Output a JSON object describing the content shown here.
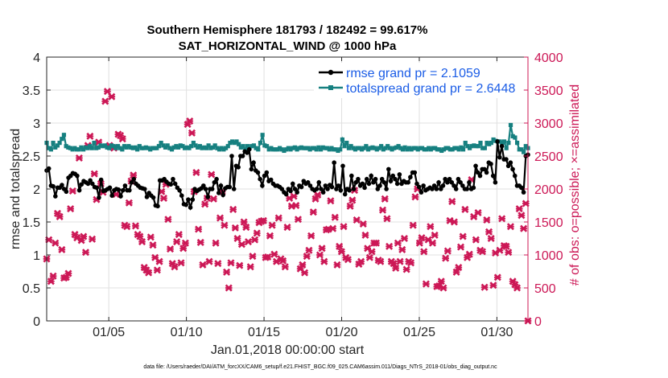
{
  "chart_data": {
    "type": "line",
    "title_line1": "Southern Hemisphere 181793 / 182492 = 99.617%",
    "title_line2": "SAT_HORIZONTAL_WIND @ 1000 hPa",
    "xlabel": "Jan.01,2018 00:00:00 start",
    "ylabel_left": "rmse and totalspread",
    "ylabel_right": "# of obs: o=possible; ×=assimilated",
    "footer": "data file: /Users/raeder/DAI/ATM_forcXX/CAM6_setup/f.e21.FHIST_BGC.f09_025.CAM6assim.011/Diags_NTrS_2018-01/obs_diag_output.nc",
    "xlim": [
      1,
      32
    ],
    "ylim_left": [
      0,
      4
    ],
    "ylim_right": [
      0,
      4000
    ],
    "x_ticks": [
      5,
      10,
      15,
      20,
      25,
      30
    ],
    "x_tick_labels": [
      "01/05",
      "01/10",
      "01/15",
      "01/20",
      "01/25",
      "01/30"
    ],
    "y_left_ticks": [
      0,
      0.5,
      1,
      1.5,
      2,
      2.5,
      3,
      3.5,
      4
    ],
    "y_left_tick_labels": [
      "0",
      "0.5",
      "1",
      "1.5",
      "2",
      "2.5",
      "3",
      "3.5",
      "4"
    ],
    "y_right_ticks": [
      0,
      500,
      1000,
      1500,
      2000,
      2500,
      3000,
      3500,
      4000
    ],
    "y_right_tick_labels": [
      "0",
      "500",
      "1000",
      "1500",
      "2000",
      "2500",
      "3000",
      "3500",
      "4000"
    ],
    "grid": true,
    "legend_position": "top-right",
    "colors": {
      "rmse": "#000000",
      "spread": "#168080",
      "obs": "#cc1856",
      "legend_text": "#1a5ce6",
      "grid": "#e0e0e0",
      "axis": "#262626"
    },
    "series": [
      {
        "name": "rmse grand pr = 2.1059",
        "axis": "left",
        "values": [
          2.28,
          2.31,
          2.05,
          2.04,
          1.89,
          2.02,
          2.02,
          2.06,
          2.0,
          1.96,
          2.17,
          2.2,
          2.24,
          2.23,
          2.2,
          1.98,
          2.07,
          2.12,
          2.1,
          2.08,
          2.13,
          2.08,
          2.03,
          2.02,
          1.87,
          2.14,
          1.97,
          1.98,
          2.0,
          2.02,
          1.9,
          1.98,
          2.0,
          1.99,
          1.89,
          1.98,
          2.05,
          1.98,
          1.98,
          2.1,
          2.15,
          2.08,
          2.05,
          2.02,
          2.01,
          2.0,
          1.88,
          1.94,
          1.9,
          1.87,
          1.75,
          1.74,
          2.13,
          2.13,
          2.15,
          2.11,
          2.08,
          2.07,
          2.15,
          2.08,
          2.02,
          1.98,
          1.9,
          1.77,
          1.76,
          1.84,
          1.72,
          1.84,
          2.0,
          1.97,
          1.99,
          2.01,
          2.05,
          2.0,
          1.88,
          2.0,
          2.0,
          2.1,
          2.15,
          1.94,
          2.05,
          1.91,
          2.01,
          2.03,
          2.03,
          2.5,
          2.0,
          2.35,
          2.33,
          2.5,
          2.5,
          2.57,
          2.55,
          2.6,
          2.3,
          2.4,
          2.28,
          2.25,
          2.15,
          2.05,
          2.2,
          2.25,
          2.12,
          2.14,
          2.08,
          2.05,
          2.05,
          2.03,
          2.0,
          1.95,
          1.92,
          2.0,
          1.97,
          2.08,
          2.0,
          1.95,
          2.05,
          2.03,
          2.12,
          2.08,
          2.1,
          2.05,
          2.0,
          1.98,
          2.0,
          2.1,
          2.0,
          1.95,
          2.05,
          2.0,
          2.06,
          2.03,
          2.4,
          2.0,
          2.05,
          1.98,
          2.35,
          1.92,
          2.0,
          1.98,
          2.2,
          2.0,
          2.1,
          2.15,
          2.05,
          2.08,
          2.02,
          2.15,
          2.08,
          2.2,
          2.1,
          2.15,
          2.0,
          2.05,
          2.15,
          2.1,
          2.0,
          2.3,
          2.12,
          2.2,
          2.15,
          2.08,
          2.22,
          2.08,
          2.12,
          2.1,
          2.1,
          2.18,
          2.25,
          2.25,
          2.08,
          2.03,
          1.95,
          2.05,
          1.98,
          2.0,
          2.02,
          2.0,
          2.05,
          2.0,
          2.1,
          2.0,
          2.05,
          2.15,
          2.1,
          2.15,
          2.1,
          2.05,
          2.0,
          2.15,
          2.1,
          2.05,
          2.0,
          2.0,
          2.1,
          2.0,
          2.02,
          2.35,
          2.25,
          2.2,
          2.3,
          2.3,
          2.25,
          2.4,
          2.38,
          2.2,
          2.1,
          2.72,
          2.48,
          2.65,
          2.45,
          2.45,
          2.35,
          2.4,
          2.3,
          2.2,
          2.05,
          2.05,
          2.02,
          1.95,
          2.5,
          2.52
        ]
      },
      {
        "name": "totalspread grand pr = 2.6448",
        "axis": "left",
        "values": [
          2.7,
          2.62,
          2.6,
          2.7,
          2.63,
          2.66,
          2.7,
          2.76,
          2.82,
          2.65,
          2.63,
          2.62,
          2.6,
          2.62,
          2.6,
          2.6,
          2.63,
          2.6,
          2.63,
          2.62,
          2.65,
          2.62,
          2.7,
          2.62,
          2.63,
          2.66,
          2.65,
          2.66,
          2.63,
          2.62,
          2.66,
          2.65,
          2.62,
          2.65,
          2.62,
          2.6,
          2.65,
          2.63,
          2.65,
          2.63,
          2.62,
          2.63,
          2.6,
          2.65,
          2.62,
          2.62,
          2.63,
          2.62,
          2.6,
          2.62,
          2.62,
          2.62,
          2.65,
          2.7,
          2.66,
          2.63,
          2.66,
          2.62,
          2.6,
          2.63,
          2.65,
          2.63,
          2.66,
          2.65,
          2.62,
          2.63,
          2.62,
          2.65,
          2.7,
          2.66,
          2.63,
          2.65,
          2.62,
          2.63,
          2.62,
          2.66,
          2.62,
          2.63,
          2.66,
          2.62,
          2.6,
          2.62,
          2.6,
          2.62,
          2.65,
          2.7,
          2.72,
          2.7,
          2.72,
          2.68,
          2.63,
          2.65,
          2.6,
          2.65,
          2.62,
          2.65,
          2.66,
          2.62,
          2.6,
          2.7,
          2.82,
          2.66,
          2.65,
          2.6,
          2.62,
          2.6,
          2.6,
          2.6,
          2.62,
          2.6,
          2.58,
          2.6,
          2.62,
          2.6,
          2.62,
          2.63,
          2.6,
          2.62,
          2.63,
          2.62,
          2.62,
          2.62,
          2.6,
          2.62,
          2.62,
          2.6,
          2.63,
          2.6,
          2.63,
          2.62,
          2.62,
          2.6,
          2.62,
          2.6,
          2.6,
          2.58,
          2.6,
          2.75,
          2.65,
          2.7,
          2.62,
          2.65,
          2.62,
          2.6,
          2.62,
          2.62,
          2.6,
          2.62,
          2.65,
          2.6,
          2.62,
          2.63,
          2.62,
          2.6,
          2.62,
          2.65,
          2.6,
          2.62,
          2.65,
          2.62,
          2.6,
          2.62,
          2.63,
          2.65,
          2.62,
          2.6,
          2.63,
          2.6,
          2.62,
          2.6,
          2.62,
          2.62,
          2.6,
          2.62,
          2.62,
          2.6,
          2.6,
          2.62,
          2.6,
          2.62,
          2.62,
          2.6,
          2.6,
          2.58,
          2.6,
          2.62,
          2.62,
          2.6,
          2.6,
          2.62,
          2.62,
          2.6,
          2.63,
          2.6,
          2.7,
          2.65,
          2.62,
          2.65,
          2.66,
          2.65,
          2.65,
          2.7,
          2.62,
          2.62,
          2.7,
          2.68,
          2.7,
          2.75,
          2.73,
          2.72,
          2.72,
          2.7,
          2.72,
          2.62,
          2.7,
          2.97,
          2.8,
          2.78,
          2.7,
          2.6,
          2.6,
          2.56,
          2.65,
          2.62
        ]
      },
      {
        "name": "obs assimilated",
        "axis": "right",
        "values": [
          940,
          1230,
          600,
          680,
          1180,
          1630,
          1580,
          1080,
          650,
          660,
          720,
          1700,
          1970,
          1310,
          1260,
          2470,
          1220,
          1280,
          1040,
          2660,
          2800,
          1240,
          2230,
          1840,
          2710,
          2080,
          1950,
          3330,
          3480,
          2660,
          3400,
          2620,
          1920,
          2830,
          2810,
          2760,
          1450,
          1430,
          1790,
          2120,
          2210,
          1440,
          1310,
          1280,
          1200,
          810,
          770,
          730,
          1270,
          1150,
          960,
          770,
          900,
          1960,
          1860,
          2070,
          1540,
          1090,
          870,
          820,
          1200,
          1310,
          880,
          1100,
          1180,
          2980,
          3030,
          2850,
          1960,
          2250,
          1390,
          1190,
          850,
          1770,
          1860,
          900,
          2220,
          1850,
          1180,
          870,
          1560,
          1960,
          1450,
          740,
          500,
          880,
          1690,
          1410,
          1250,
          840,
          1160,
          1500,
          1420,
          1200,
          820,
          980,
          1230,
          1330,
          1490,
          1510,
          1520,
          960,
          970,
          1290,
          1450,
          1010,
          900,
          1560,
          940,
          910,
          820,
          1420,
          1860,
          1740,
          1890,
          1750,
          1540,
          790,
          850,
          730,
          980,
          1070,
          1290,
          1650,
          1850,
          1910,
          1000,
          1100,
          900,
          1380,
          1390,
          1820,
          1400,
          1570,
          850,
          1130,
          1050,
          1430,
          960,
          930,
          1740,
          1830,
          1980,
          1530,
          860,
          900,
          1470,
          1300,
          1100,
          960,
          1050,
          1180,
          1180,
          920,
          900,
          1680,
          1850,
          1550,
          1130,
          900,
          870,
          800,
          1180,
          900,
          1080,
          1250,
          780,
          900,
          880,
          1450,
          1880,
          2000,
          1180,
          1260,
          1050,
          560,
          1230,
          1430,
          1180,
          1300,
          520,
          530,
          600,
          500,
          950,
          1060,
          1520,
          1810,
          1500,
          740,
          810,
          1120,
          1280,
          1690,
          960,
          1010,
          2140,
          1580,
          1230,
          1640,
          1070,
          1050,
          510,
          1530,
          1350,
          1250,
          540,
          1030,
          660,
          1070,
          1550,
          1140,
          1130,
          1040,
          1430,
          600,
          550,
          500,
          1700,
          1600,
          1400,
          1780,
          0
        ]
      }
    ]
  }
}
